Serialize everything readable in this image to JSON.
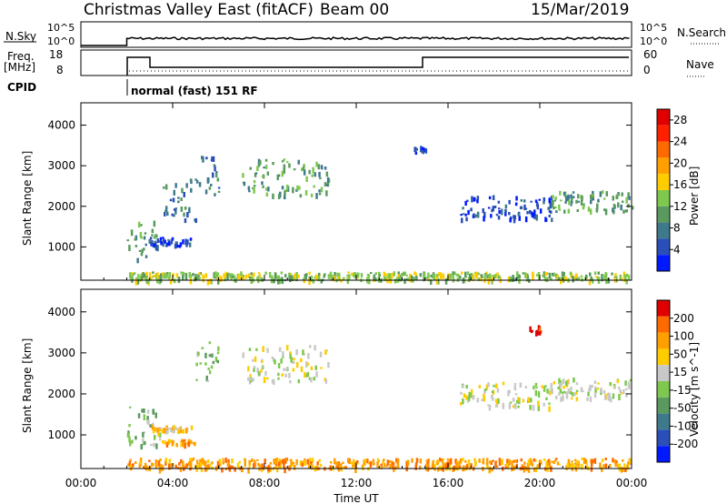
{
  "header": {
    "title": "Christmas Valley East (fitACF)",
    "beam": "Beam 00",
    "date": "15/Mar/2019"
  },
  "top_panels": {
    "nsky_label": "N.Sky",
    "nsky_ticks": [
      "10^5",
      "10^0"
    ],
    "nsky_right_ticks": [
      "10^5",
      "10^0"
    ],
    "nsearch_label": "N.Search",
    "freq_label": "Freq.",
    "freq_unit": "[MHz]",
    "freq_ticks": [
      "18",
      "8"
    ],
    "nave_label": "Nave",
    "nave_ticks": [
      "60",
      "0"
    ],
    "cpid_label": "CPID",
    "cpid_text": "normal (fast) 151 RF"
  },
  "chart_data": [
    {
      "type": "heatmap",
      "name": "power-panel",
      "ylabel": "Slant Range [km]",
      "ylim": [
        180,
        4550
      ],
      "yticks": [
        1000,
        2000,
        3000,
        4000
      ],
      "xlim_hours": [
        0,
        24
      ],
      "colorbar": {
        "label": "Power [dB]",
        "ticks": [
          "4",
          "8",
          "12",
          "16",
          "20",
          "24",
          "28"
        ],
        "colors": [
          "#0019ff",
          "#2a4fb8",
          "#3f7a8c",
          "#5a9a5e",
          "#7ec850",
          "#ffcc00",
          "#ffa000",
          "#ff6a00",
          "#ff2000",
          "#e00000"
        ]
      },
      "echo_bands": [
        {
          "t0": 2.0,
          "t1": 3.3,
          "r0": 700,
          "r1": 1700,
          "color_index": 3
        },
        {
          "t0": 3.0,
          "t1": 4.8,
          "r0": 1050,
          "r1": 1250,
          "color_index": 1
        },
        {
          "t0": 3.5,
          "t1": 5.0,
          "r0": 1700,
          "r1": 2700,
          "color_index": 2
        },
        {
          "t0": 5.0,
          "t1": 6.0,
          "r0": 2300,
          "r1": 3300,
          "color_index": 2
        },
        {
          "t0": 7.0,
          "t1": 10.8,
          "r0": 2300,
          "r1": 3200,
          "color_index": 3
        },
        {
          "t0": 14.5,
          "t1": 15.0,
          "r0": 3300,
          "r1": 3500,
          "color_index": 1
        },
        {
          "t0": 16.5,
          "t1": 20.5,
          "r0": 1700,
          "r1": 2300,
          "color_index": 1
        },
        {
          "t0": 20.5,
          "t1": 24.0,
          "r0": 1900,
          "r1": 2400,
          "color_index": 3
        },
        {
          "t0": 2.0,
          "t1": 24.0,
          "r0": 200,
          "r1": 400,
          "color_index": 4
        }
      ]
    },
    {
      "type": "heatmap",
      "name": "velocity-panel",
      "ylabel": "Slant Range [km]",
      "ylim": [
        180,
        4550
      ],
      "yticks": [
        1000,
        2000,
        3000,
        4000
      ],
      "xlim_hours": [
        0,
        24
      ],
      "colorbar": {
        "label": "Velocity [m s^-1]",
        "ticks": [
          "200",
          "100",
          "50",
          "15",
          "-15",
          "-50",
          "-100",
          "-200"
        ],
        "colors": [
          "#0019ff",
          "#2a4fb8",
          "#3f7a8c",
          "#5a9a5e",
          "#7ec850",
          "#c8c8c8",
          "#ffcc00",
          "#ffa000",
          "#ff6a00",
          "#e00000"
        ]
      },
      "echo_bands": [
        {
          "t0": 2.0,
          "t1": 3.5,
          "r0": 700,
          "r1": 1700,
          "color_index": 4
        },
        {
          "t0": 3.0,
          "t1": 4.8,
          "r0": 1100,
          "r1": 1250,
          "color_index": 6
        },
        {
          "t0": 3.5,
          "t1": 5.0,
          "r0": 800,
          "r1": 900,
          "color_index": 7
        },
        {
          "t0": 5.0,
          "t1": 6.0,
          "r0": 2300,
          "r1": 3300,
          "color_index": 4
        },
        {
          "t0": 7.0,
          "t1": 10.8,
          "r0": 2300,
          "r1": 3200,
          "color_index": 5
        },
        {
          "t0": 16.5,
          "t1": 20.5,
          "r0": 1700,
          "r1": 2300,
          "color_index": 5
        },
        {
          "t0": 19.5,
          "t1": 20.0,
          "r0": 3500,
          "r1": 3700,
          "color_index": 9
        },
        {
          "t0": 20.5,
          "t1": 24.0,
          "r0": 1900,
          "r1": 2400,
          "color_index": 5
        },
        {
          "t0": 2.0,
          "t1": 24.0,
          "r0": 200,
          "r1": 450,
          "color_index": 7
        }
      ]
    }
  ],
  "xaxis": {
    "label": "Time UT",
    "ticks": [
      "00:00",
      "04:00",
      "08:00",
      "12:00",
      "16:00",
      "20:00",
      "00:00"
    ]
  }
}
